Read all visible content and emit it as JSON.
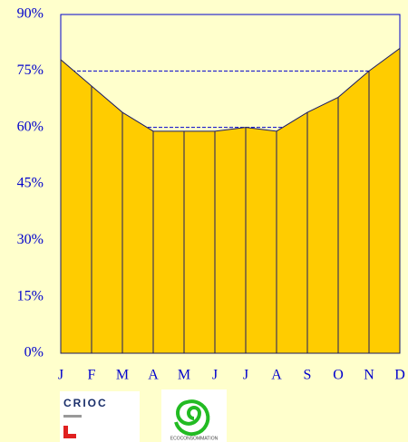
{
  "chart_data": {
    "type": "area",
    "categories": [
      "J",
      "F",
      "M",
      "A",
      "M",
      "J",
      "J",
      "A",
      "S",
      "O",
      "N",
      "D"
    ],
    "values": [
      78,
      71,
      64,
      59,
      59,
      59,
      60,
      59,
      64,
      68,
      75,
      81
    ],
    "color": "#ffcc00",
    "ylim": [
      0,
      90
    ],
    "yticks": [
      {
        "value": 0,
        "label": "0%"
      },
      {
        "value": 15,
        "label": "15%"
      },
      {
        "value": 30,
        "label": "30%"
      },
      {
        "value": 45,
        "label": "45%"
      },
      {
        "value": 60,
        "label": "60%"
      },
      {
        "value": 75,
        "label": "75%"
      },
      {
        "value": 90,
        "label": "90%"
      }
    ],
    "reference_lines": [
      75,
      60
    ]
  },
  "logos": {
    "left": "CRIOC",
    "right": "ECOCONSOMMATION"
  }
}
